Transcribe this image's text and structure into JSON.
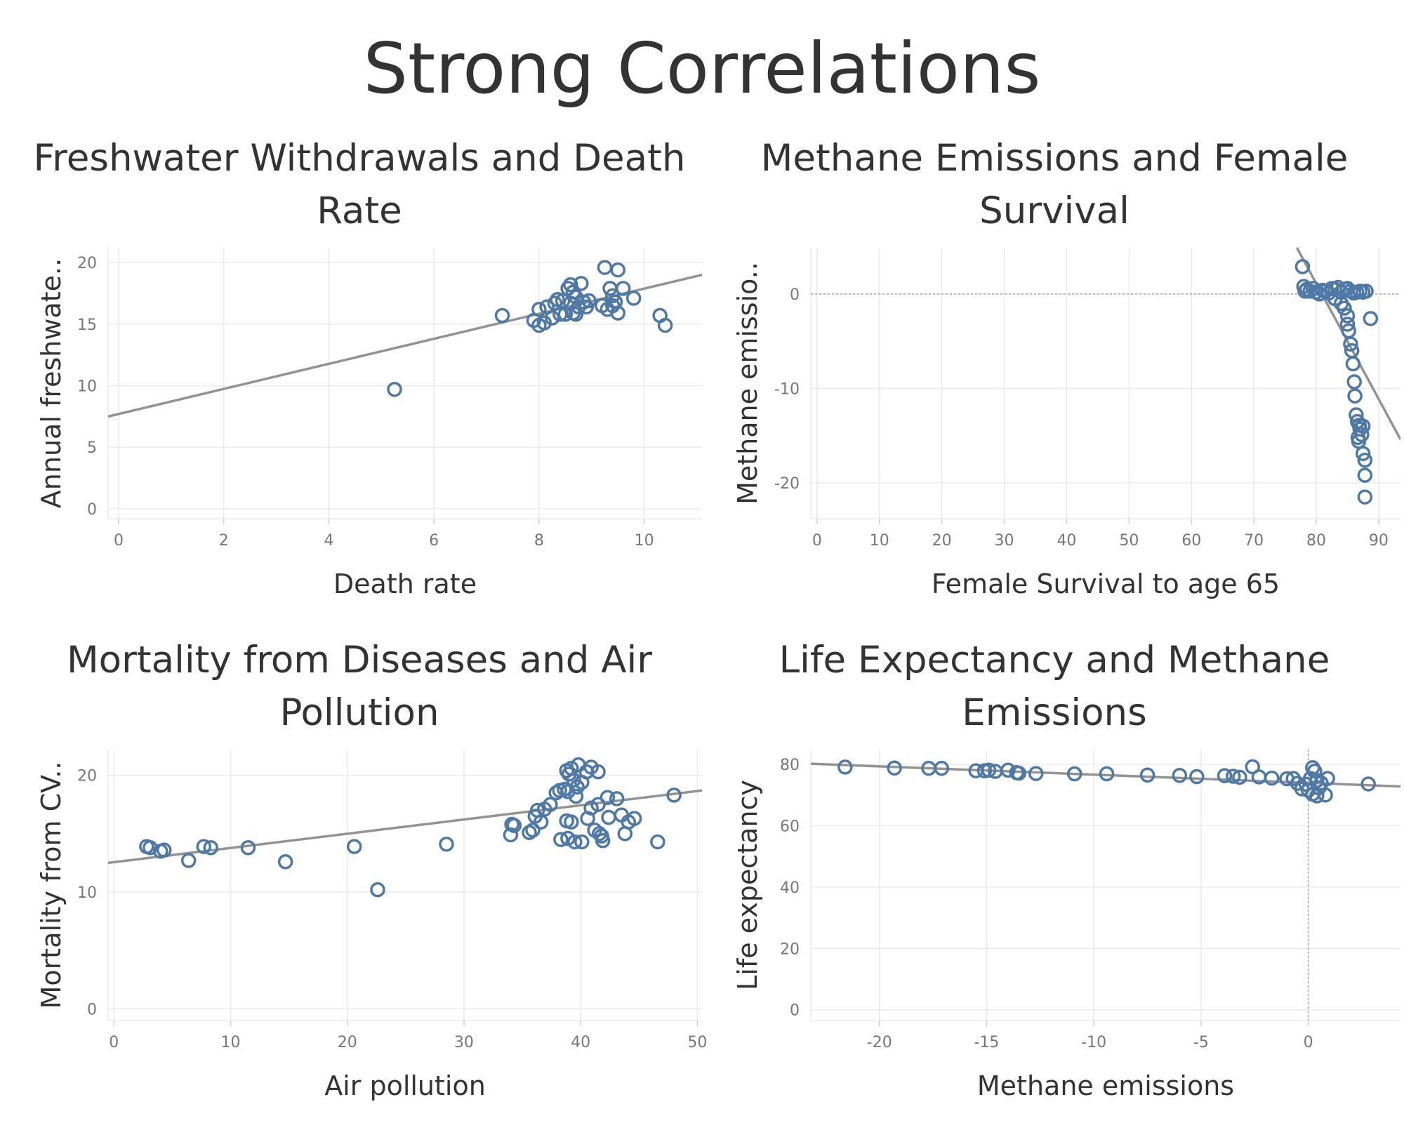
{
  "page": {
    "title": "Strong Correlations"
  },
  "colors": {
    "point": "#4e79a7",
    "trend": "#939393",
    "grid": "#ebebeb",
    "zero": "#a6a6a6"
  },
  "chart_data": [
    {
      "type": "scatter",
      "title": [
        "Freshwater Withdrawals and Death",
        "Rate"
      ],
      "xlabel": "Death rate",
      "ylabel": "Annual freshwate..",
      "xlim": [
        -0.2,
        11.1
      ],
      "ylim": [
        -0.8,
        21.2
      ],
      "xticks": [
        0,
        2,
        4,
        6,
        8,
        10
      ],
      "yticks": [
        0,
        5,
        10,
        15,
        20
      ],
      "grid": true,
      "trend": [
        [
          -0.2,
          7.5
        ],
        [
          11.1,
          19.0
        ]
      ],
      "points": [
        [
          5.25,
          9.7
        ],
        [
          7.3,
          15.7
        ],
        [
          7.9,
          15.3
        ],
        [
          8.0,
          14.9
        ],
        [
          8.1,
          15.1
        ],
        [
          8.0,
          16.2
        ],
        [
          8.15,
          16.4
        ],
        [
          8.25,
          15.5
        ],
        [
          8.3,
          16.7
        ],
        [
          8.35,
          17.0
        ],
        [
          8.45,
          16.9
        ],
        [
          8.5,
          15.8
        ],
        [
          8.55,
          17.9
        ],
        [
          8.6,
          18.2
        ],
        [
          8.65,
          17.6
        ],
        [
          8.7,
          15.8
        ],
        [
          8.75,
          16.4
        ],
        [
          8.8,
          18.3
        ],
        [
          8.85,
          16.8
        ],
        [
          8.9,
          16.4
        ],
        [
          8.95,
          16.9
        ],
        [
          8.6,
          16.7
        ],
        [
          8.65,
          15.9
        ],
        [
          8.7,
          17.2
        ],
        [
          9.2,
          16.5
        ],
        [
          9.25,
          19.6
        ],
        [
          9.3,
          16.2
        ],
        [
          9.35,
          17.9
        ],
        [
          9.4,
          17.3
        ],
        [
          9.45,
          16.8
        ],
        [
          9.5,
          19.4
        ],
        [
          9.5,
          15.9
        ],
        [
          9.6,
          17.9
        ],
        [
          9.8,
          17.1
        ],
        [
          10.3,
          15.7
        ],
        [
          10.4,
          14.9
        ],
        [
          9.4,
          16.5
        ],
        [
          8.4,
          15.8
        ]
      ]
    },
    {
      "type": "scatter",
      "title": [
        "Methane Emissions and Female",
        "Survival"
      ],
      "xlabel": "Female Survival to age 65",
      "ylabel": "Methane emissio..",
      "xlim": [
        -1,
        93.5
      ],
      "ylim": [
        -23.8,
        4.9
      ],
      "xticks": [
        0,
        10,
        20,
        30,
        40,
        50,
        60,
        70,
        80,
        90
      ],
      "yticks": [
        -20,
        -10,
        0
      ],
      "grid": true,
      "zero_line": "y",
      "trend": [
        [
          76.9,
          4.9
        ],
        [
          93.5,
          -15.4
        ]
      ],
      "points": [
        [
          77.8,
          2.9
        ],
        [
          78.0,
          0.8
        ],
        [
          78.2,
          0.3
        ],
        [
          78.5,
          0.5
        ],
        [
          79.0,
          0.3
        ],
        [
          79.5,
          0.6
        ],
        [
          80.0,
          0.2
        ],
        [
          80.5,
          0.0
        ],
        [
          81.0,
          0.4
        ],
        [
          81.5,
          0.3
        ],
        [
          82.0,
          0.1
        ],
        [
          82.5,
          0.6
        ],
        [
          83.0,
          0.5
        ],
        [
          83.5,
          0.7
        ],
        [
          84.0,
          0.2
        ],
        [
          84.5,
          0.5
        ],
        [
          85.0,
          0.6
        ],
        [
          85.5,
          0.3
        ],
        [
          86.0,
          0.1
        ],
        [
          86.5,
          0.2
        ],
        [
          87.0,
          0.3
        ],
        [
          87.5,
          0.2
        ],
        [
          88.0,
          0.3
        ],
        [
          83.0,
          -0.5
        ],
        [
          84.0,
          -1.0
        ],
        [
          84.5,
          -1.5
        ],
        [
          85.0,
          -2.3
        ],
        [
          85.0,
          -3.2
        ],
        [
          85.2,
          -3.9
        ],
        [
          85.5,
          -5.3
        ],
        [
          85.7,
          -6.0
        ],
        [
          85.9,
          -7.4
        ],
        [
          86.1,
          -9.3
        ],
        [
          86.2,
          -10.8
        ],
        [
          86.4,
          -12.8
        ],
        [
          86.6,
          -13.5
        ],
        [
          86.9,
          -13.9
        ],
        [
          87.0,
          -14.3
        ],
        [
          87.3,
          -14.9
        ],
        [
          86.7,
          -15.2
        ],
        [
          86.8,
          -15.6
        ],
        [
          87.5,
          -16.9
        ],
        [
          87.8,
          -17.6
        ],
        [
          87.8,
          -19.2
        ],
        [
          87.8,
          -21.5
        ],
        [
          88.7,
          -2.6
        ],
        [
          87.5,
          -14.0
        ]
      ]
    },
    {
      "type": "scatter",
      "title": [
        "Mortality from Diseases and Air",
        "Pollution"
      ],
      "xlabel": "Air pollution",
      "ylabel": "Mortality from CV..",
      "xlim": [
        -0.5,
        50.4
      ],
      "ylim": [
        -1.0,
        22.2
      ],
      "xticks": [
        0,
        10,
        20,
        30,
        40,
        50
      ],
      "yticks": [
        0,
        10,
        20
      ],
      "grid": true,
      "trend": [
        [
          -0.5,
          12.5
        ],
        [
          50.4,
          18.7
        ]
      ],
      "points": [
        [
          2.8,
          13.9
        ],
        [
          3.1,
          13.8
        ],
        [
          4.0,
          13.5
        ],
        [
          4.3,
          13.6
        ],
        [
          6.4,
          12.7
        ],
        [
          7.7,
          13.9
        ],
        [
          8.3,
          13.8
        ],
        [
          11.5,
          13.8
        ],
        [
          14.7,
          12.6
        ],
        [
          20.6,
          13.9
        ],
        [
          22.6,
          10.2
        ],
        [
          28.5,
          14.1
        ],
        [
          34.0,
          14.9
        ],
        [
          34.1,
          15.8
        ],
        [
          34.3,
          15.7
        ],
        [
          35.6,
          15.1
        ],
        [
          35.9,
          15.3
        ],
        [
          36.1,
          16.5
        ],
        [
          36.3,
          17.0
        ],
        [
          36.6,
          16.0
        ],
        [
          36.9,
          17.1
        ],
        [
          37.4,
          17.5
        ],
        [
          37.9,
          18.5
        ],
        [
          38.2,
          18.7
        ],
        [
          38.6,
          18.8
        ],
        [
          38.9,
          18.6
        ],
        [
          38.8,
          20.4
        ],
        [
          39.0,
          20.1
        ],
        [
          39.2,
          20.6
        ],
        [
          39.4,
          19.6
        ],
        [
          39.7,
          19.0
        ],
        [
          39.8,
          20.9
        ],
        [
          40.1,
          19.4
        ],
        [
          40.5,
          20.3
        ],
        [
          40.9,
          20.7
        ],
        [
          41.5,
          20.3
        ],
        [
          39.6,
          18.2
        ],
        [
          38.8,
          16.1
        ],
        [
          39.2,
          16.0
        ],
        [
          38.3,
          14.5
        ],
        [
          38.9,
          14.6
        ],
        [
          39.5,
          14.3
        ],
        [
          40.1,
          14.3
        ],
        [
          40.6,
          16.3
        ],
        [
          40.9,
          17.2
        ],
        [
          41.2,
          15.3
        ],
        [
          41.5,
          17.5
        ],
        [
          41.8,
          14.8
        ],
        [
          41.9,
          14.4
        ],
        [
          42.3,
          18.1
        ],
        [
          42.4,
          16.4
        ],
        [
          43.1,
          18.0
        ],
        [
          43.5,
          16.6
        ],
        [
          43.8,
          15.0
        ],
        [
          44.1,
          16.0
        ],
        [
          44.6,
          16.3
        ],
        [
          46.6,
          14.3
        ],
        [
          48.0,
          18.3
        ],
        [
          41.6,
          15.0
        ]
      ]
    },
    {
      "type": "scatter",
      "title": [
        "Life Expectancy and Methane",
        "Emissions"
      ],
      "xlabel": "Methane emissions",
      "ylabel": "Life expectancy",
      "xlim": [
        -23.2,
        4.3
      ],
      "ylim": [
        -3.5,
        84.8
      ],
      "xticks": [
        -20,
        -15,
        -10,
        -5,
        0
      ],
      "yticks": [
        0,
        20,
        40,
        60,
        80
      ],
      "grid": true,
      "zero_line": "x",
      "trend": [
        [
          -23.2,
          80.2
        ],
        [
          4.3,
          72.8
        ]
      ],
      "points": [
        [
          -21.6,
          79.1
        ],
        [
          -19.3,
          78.8
        ],
        [
          -17.7,
          78.7
        ],
        [
          -17.1,
          78.7
        ],
        [
          -15.5,
          77.9
        ],
        [
          -15.1,
          77.9
        ],
        [
          -14.9,
          78.1
        ],
        [
          -14.6,
          77.7
        ],
        [
          -14.0,
          78.1
        ],
        [
          -13.6,
          77.3
        ],
        [
          -13.5,
          77.1
        ],
        [
          -12.7,
          77.0
        ],
        [
          -10.9,
          76.9
        ],
        [
          -9.4,
          76.9
        ],
        [
          -7.5,
          76.5
        ],
        [
          -6.0,
          76.4
        ],
        [
          -5.2,
          76.0
        ],
        [
          -3.9,
          76.3
        ],
        [
          -3.5,
          76.1
        ],
        [
          -3.2,
          75.8
        ],
        [
          -2.6,
          79.2
        ],
        [
          -2.3,
          75.9
        ],
        [
          -1.7,
          75.5
        ],
        [
          -1.0,
          75.3
        ],
        [
          -0.7,
          75.4
        ],
        [
          -0.5,
          73.8
        ],
        [
          -0.3,
          72.0
        ],
        [
          -0.1,
          73.5
        ],
        [
          0.0,
          71.5
        ],
        [
          0.1,
          75.4
        ],
        [
          0.2,
          78.9
        ],
        [
          0.3,
          77.8
        ],
        [
          0.2,
          70.3
        ],
        [
          0.4,
          74.7
        ],
        [
          0.6,
          73.9
        ],
        [
          0.8,
          70.0
        ],
        [
          0.9,
          75.4
        ],
        [
          2.8,
          73.6
        ],
        [
          0.4,
          69.7
        ],
        [
          0.5,
          72.3
        ]
      ]
    }
  ]
}
